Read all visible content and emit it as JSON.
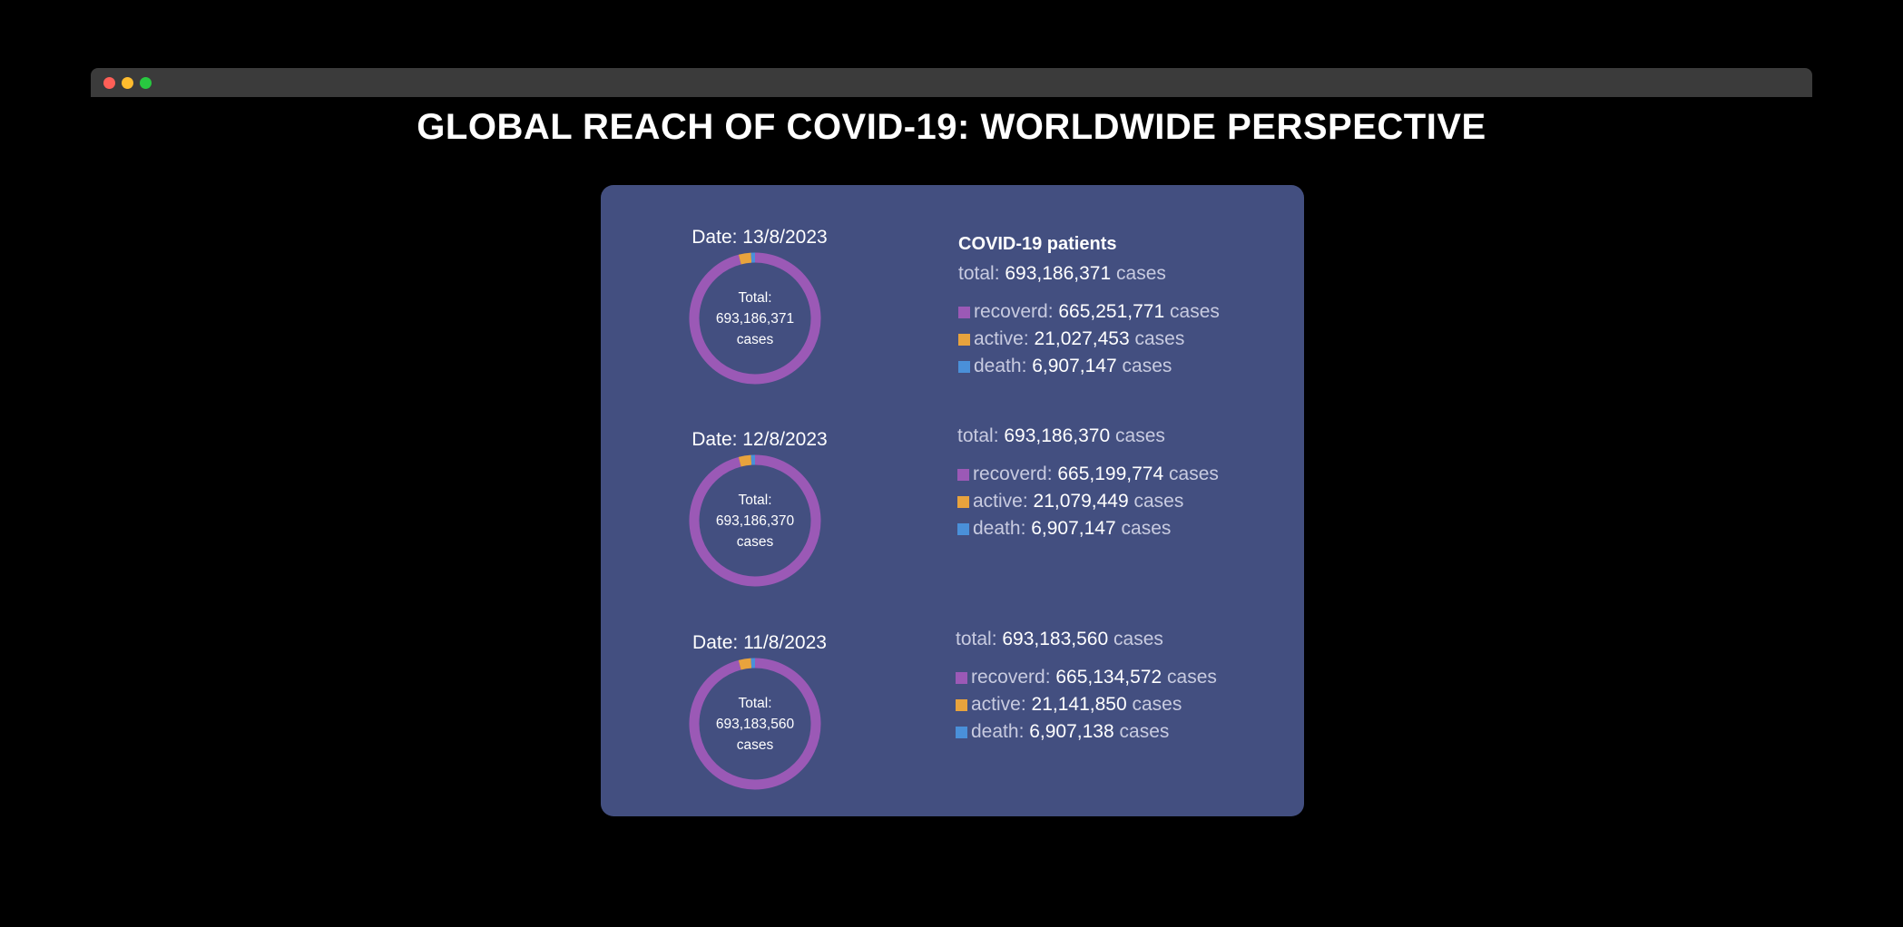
{
  "page_title": "GLOBAL REACH OF COVID-19: WORLDWIDE PERSPECTIVE",
  "colors": {
    "recovered": "#9b59b6",
    "active": "#e8a33d",
    "death": "#4a90d9",
    "card_background": "#434f80"
  },
  "legend_title": "COVID-19 patients",
  "total_prefix": "Total:",
  "cases_word": "cases",
  "chart_data": [
    {
      "type": "pie",
      "date_label": "Date: 13/8/2023",
      "total": 693186371,
      "total_text": "693,186,371",
      "categories": [
        "recoverd",
        "active",
        "death"
      ],
      "values": [
        665251771,
        21027453,
        6907147
      ],
      "value_texts": [
        "665,251,771",
        "21,027,453",
        "6,907,147"
      ]
    },
    {
      "type": "pie",
      "date_label": "Date: 12/8/2023",
      "total": 693186370,
      "total_text": "693,186,370",
      "categories": [
        "recoverd",
        "active",
        "death"
      ],
      "values": [
        665199774,
        21079449,
        6907147
      ],
      "value_texts": [
        "665,199,774",
        "21,079,449",
        "6,907,147"
      ]
    },
    {
      "type": "pie",
      "date_label": "Date: 11/8/2023",
      "total": 693183560,
      "total_text": "693,183,560",
      "categories": [
        "recoverd",
        "active",
        "death"
      ],
      "values": [
        665134572,
        21141850,
        6907138
      ],
      "value_texts": [
        "665,134,572",
        "21,141,850",
        "6,907,138"
      ]
    }
  ]
}
